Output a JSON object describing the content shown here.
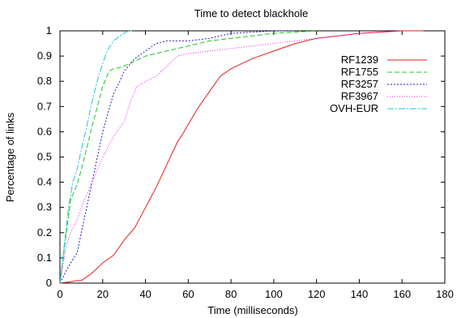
{
  "chart_data": {
    "type": "line",
    "title": "Time to detect blackhole",
    "xlabel": "Time (milliseconds)",
    "ylabel": "Percentage of links",
    "xlim": [
      0,
      180
    ],
    "ylim": [
      0,
      1
    ],
    "xticks": [
      0,
      20,
      40,
      60,
      80,
      100,
      120,
      140,
      160,
      180
    ],
    "yticks": [
      0,
      0.1,
      0.2,
      0.3,
      0.4,
      0.5,
      0.6,
      0.7,
      0.8,
      0.9,
      1
    ],
    "grid": false,
    "legend": "top-right",
    "series": [
      {
        "name": "RF1239",
        "color": "#e0201a",
        "dash": "solid",
        "x": [
          0,
          5,
          8,
          10,
          15,
          20,
          25,
          30,
          35,
          40,
          45,
          50,
          55,
          58,
          60,
          65,
          70,
          75,
          80,
          85,
          90,
          100,
          110,
          120,
          130,
          140,
          150,
          160,
          170
        ],
        "y": [
          0,
          0.005,
          0.01,
          0.01,
          0.04,
          0.08,
          0.11,
          0.17,
          0.22,
          0.3,
          0.38,
          0.47,
          0.56,
          0.6,
          0.63,
          0.7,
          0.76,
          0.82,
          0.85,
          0.87,
          0.89,
          0.92,
          0.95,
          0.97,
          0.98,
          0.99,
          0.995,
          1,
          1
        ]
      },
      {
        "name": "RF1755",
        "color": "#22c322",
        "dash": "6,3",
        "x": [
          0,
          3,
          5,
          8,
          10,
          15,
          20,
          23,
          25,
          28,
          30,
          35,
          40,
          45,
          50,
          60,
          70,
          80,
          90,
          100,
          110,
          120
        ],
        "y": [
          0,
          0.2,
          0.33,
          0.39,
          0.45,
          0.62,
          0.78,
          0.84,
          0.85,
          0.855,
          0.86,
          0.88,
          0.9,
          0.91,
          0.92,
          0.94,
          0.96,
          0.97,
          0.98,
          0.99,
          0.995,
          1
        ]
      },
      {
        "name": "RF3257",
        "color": "#1c1cc9",
        "dash": "2,2",
        "x": [
          0,
          3,
          5,
          8,
          10,
          15,
          20,
          25,
          28,
          30,
          35,
          40,
          45,
          50,
          55,
          60,
          70,
          80,
          90,
          100,
          110
        ],
        "y": [
          0,
          0.05,
          0.08,
          0.12,
          0.2,
          0.4,
          0.6,
          0.75,
          0.8,
          0.84,
          0.89,
          0.92,
          0.95,
          0.96,
          0.96,
          0.96,
          0.97,
          0.99,
          0.995,
          1,
          1
        ]
      },
      {
        "name": "RF3967",
        "color": "#e020e0",
        "dash": "1,2",
        "x": [
          0,
          3,
          5,
          8,
          10,
          15,
          20,
          25,
          30,
          33,
          36,
          40,
          45,
          50,
          55,
          60,
          70,
          80,
          90,
          100,
          120,
          140,
          160
        ],
        "y": [
          0,
          0.15,
          0.2,
          0.25,
          0.3,
          0.4,
          0.5,
          0.58,
          0.64,
          0.72,
          0.78,
          0.8,
          0.82,
          0.86,
          0.9,
          0.91,
          0.92,
          0.93,
          0.94,
          0.95,
          0.97,
          0.99,
          1
        ]
      },
      {
        "name": "OVH-EUR",
        "color": "#1fc7d6",
        "dash": "8,2,2,2",
        "x": [
          0,
          2,
          4,
          6,
          8,
          10,
          12,
          15,
          18,
          20,
          22,
          25,
          28,
          30,
          32,
          34
        ],
        "y": [
          0,
          0.15,
          0.3,
          0.4,
          0.45,
          0.53,
          0.6,
          0.72,
          0.82,
          0.87,
          0.92,
          0.96,
          0.98,
          0.99,
          1,
          1
        ]
      }
    ]
  }
}
